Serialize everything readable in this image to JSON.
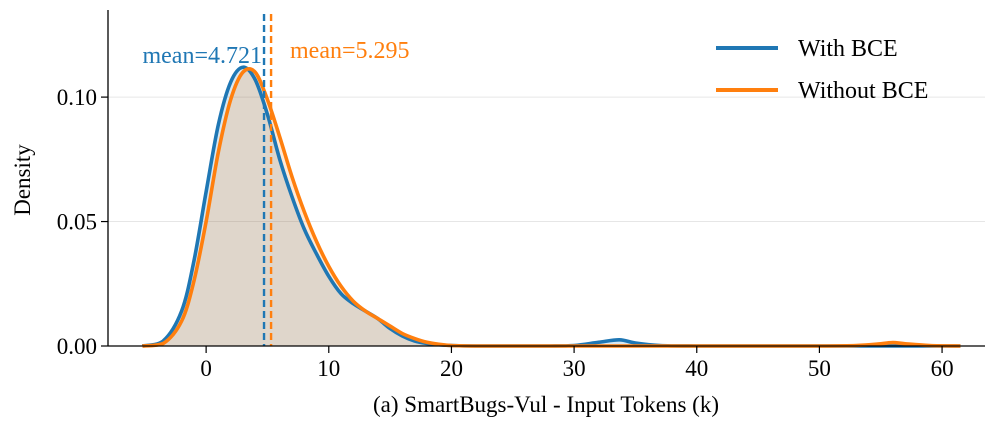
{
  "chart_data": {
    "type": "area",
    "xlabel": "(a) SmartBugs-Vul - Input Tokens (k)",
    "ylabel": "Density",
    "xlim": [
      -8.0,
      63.5
    ],
    "ylim": [
      0,
      0.135
    ],
    "xticks": [
      0,
      10,
      20,
      30,
      40,
      50,
      60
    ],
    "xtick_labels": [
      "0",
      "10",
      "20",
      "30",
      "40",
      "50",
      "60"
    ],
    "yticks": [
      0.0,
      0.05,
      0.1
    ],
    "ytick_labels": [
      "0.00",
      "0.05",
      "0.10"
    ],
    "grid": "horizontal",
    "legend_position": "top-right",
    "series": [
      {
        "name": "With BCE",
        "color": "#1f77b4",
        "mean": 4.721,
        "mean_label": "mean=4.721",
        "x": [
          -5.2,
          -3.5,
          -2,
          -1,
          0,
          1,
          2,
          3,
          4,
          5,
          6,
          7,
          8,
          9,
          10,
          11,
          12,
          13,
          14,
          15,
          16,
          17,
          18,
          19,
          20,
          22,
          25,
          28,
          30,
          32,
          33.7,
          35,
          37,
          40,
          45,
          50,
          55,
          56,
          58,
          61.5
        ],
        "y": [
          0.0,
          0.002,
          0.014,
          0.034,
          0.062,
          0.089,
          0.106,
          0.112,
          0.107,
          0.093,
          0.075,
          0.06,
          0.047,
          0.037,
          0.028,
          0.021,
          0.017,
          0.014,
          0.011,
          0.007,
          0.004,
          0.002,
          0.001,
          0.0005,
          0.0002,
          0.0,
          0.0,
          0.0,
          0.0002,
          0.0015,
          0.0025,
          0.0012,
          0.0002,
          0.0,
          0.0,
          0.0,
          0.0,
          0.0,
          0.0,
          0.0
        ]
      },
      {
        "name": "Without BCE",
        "color": "#ff7f0e",
        "mean": 5.295,
        "mean_label": "mean=5.295",
        "x": [
          -5.2,
          -3.5,
          -2,
          -1,
          0,
          1,
          2,
          3,
          4,
          5,
          6,
          7,
          8,
          9,
          10,
          11,
          12,
          13,
          14,
          15,
          16,
          17,
          18,
          19,
          20,
          22,
          25,
          28,
          30,
          32,
          33.7,
          35,
          37,
          40,
          45,
          50,
          53,
          55,
          56,
          57,
          59,
          61.5
        ],
        "y": [
          0.0,
          0.001,
          0.01,
          0.026,
          0.05,
          0.078,
          0.099,
          0.11,
          0.11,
          0.099,
          0.084,
          0.068,
          0.054,
          0.042,
          0.032,
          0.024,
          0.018,
          0.014,
          0.011,
          0.008,
          0.005,
          0.003,
          0.0015,
          0.0007,
          0.0002,
          0.0,
          0.0,
          0.0,
          0.0,
          0.0,
          0.0,
          0.0,
          0.0,
          0.0,
          0.0,
          0.0,
          0.0002,
          0.0009,
          0.0014,
          0.0009,
          0.0002,
          0.0
        ]
      }
    ]
  }
}
